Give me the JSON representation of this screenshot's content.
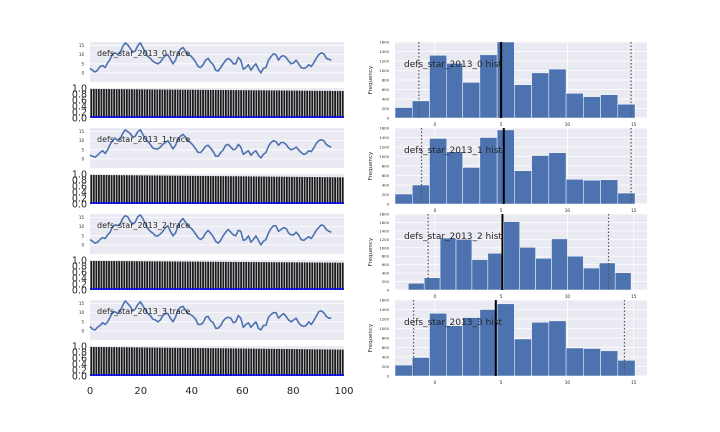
{
  "figure": {
    "colors": {
      "axes_bg": "#EAEAF2",
      "grid": "#FFFFFF",
      "trace_line": "#4C72B0",
      "hist_fill": "#4C72B0",
      "bar_fill": "#1A1A1A",
      "acf_line": "#0000FF",
      "mean_line": "#000000",
      "ci_line": "#555555",
      "text": "#262626"
    },
    "shared_x": {
      "range": [
        0,
        100
      ],
      "ticks": [
        0,
        20,
        40,
        60,
        80,
        100
      ]
    }
  },
  "chart_data": [
    {
      "type": "line",
      "role": "trace",
      "title": "defs_star_2013_0 trace",
      "ylim": [
        -5,
        17
      ],
      "yticks": [
        15,
        10,
        5,
        0
      ],
      "x_range": [
        0,
        100
      ],
      "y_values": [
        2.5,
        1.5,
        0.5,
        1.5,
        3.5,
        4.0,
        3.0,
        5.5,
        7.5,
        10.5,
        11.0,
        10.0,
        11.0,
        14.5,
        16.5,
        15.5,
        13.5,
        11.5,
        12.0,
        15.0,
        16.5,
        14.0,
        11.0,
        9.0,
        8.0,
        6.5,
        5.5,
        5.0,
        6.0,
        8.0,
        9.5,
        10.0,
        7.5,
        5.0,
        7.0,
        11.0,
        13.0,
        14.0,
        12.0,
        10.0,
        9.5,
        8.0,
        6.0,
        3.5,
        3.0,
        4.5,
        7.0,
        8.0,
        6.0,
        4.5,
        1.5,
        1.0,
        3.0,
        5.0,
        7.0,
        8.0,
        7.0,
        5.0,
        5.0,
        8.5,
        7.0,
        2.0,
        3.0,
        4.5,
        1.5,
        3.5,
        5.0,
        2.0,
        0.0,
        2.5,
        3.0,
        7.0,
        9.0,
        10.5,
        10.0,
        7.0,
        9.0,
        9.5,
        8.5,
        6.5,
        5.0,
        5.5,
        7.0,
        5.0,
        3.0,
        2.5,
        3.0,
        4.5,
        3.5,
        5.5,
        8.0,
        10.0,
        11.0,
        10.5,
        8.0,
        7.5,
        7.0
      ]
    },
    {
      "type": "bar",
      "role": "autocorrelation",
      "ylim": [
        0.0,
        1.0
      ],
      "yticks": [
        1.0,
        0.8,
        0.6,
        0.4,
        0.2,
        0.0
      ],
      "x_range": [
        0,
        100
      ],
      "values_start": 0.97,
      "values_end": 0.9,
      "n_bars": 100
    },
    {
      "type": "bar",
      "role": "histogram",
      "title": "defs_star_2013_0 hist",
      "ylabel": "Frequency",
      "yticks": [
        0,
        200,
        400,
        600,
        800,
        1000,
        1200,
        1400,
        1600
      ],
      "xticks": [
        0,
        5,
        10,
        15
      ],
      "xlim": [
        -3,
        16
      ],
      "ylim": [
        0,
        1600
      ],
      "bin_edges": [
        -3.0,
        -1.7,
        -0.4,
        0.9,
        2.1,
        3.4,
        4.7,
        6.0,
        7.3,
        8.6,
        9.9,
        11.2,
        12.5,
        13.8,
        15.1,
        16.4
      ],
      "counts": [
        220,
        360,
        1320,
        1150,
        750,
        1330,
        1600,
        700,
        950,
        1030,
        520,
        450,
        490,
        290,
        0
      ],
      "mean": 5.0,
      "ci": [
        -1.2,
        14.8
      ]
    },
    {
      "type": "line",
      "role": "trace",
      "title": "defs_star_2013_1 trace",
      "ylim": [
        -5,
        17
      ],
      "yticks": [
        15,
        10,
        5,
        0
      ],
      "x_range": [
        0,
        100
      ],
      "y_values": [
        2.0,
        1.5,
        1.0,
        2.0,
        3.5,
        4.5,
        3.0,
        5.0,
        8.0,
        10.0,
        11.5,
        10.0,
        11.0,
        14.0,
        16.0,
        15.0,
        14.0,
        12.0,
        12.5,
        15.0,
        16.0,
        13.5,
        11.0,
        9.5,
        8.0,
        6.0,
        5.5,
        5.5,
        6.5,
        8.0,
        9.0,
        10.0,
        8.0,
        5.5,
        7.5,
        11.0,
        12.5,
        13.5,
        12.0,
        10.0,
        9.0,
        7.5,
        5.5,
        3.5,
        3.5,
        5.0,
        7.0,
        7.5,
        6.0,
        4.0,
        1.5,
        1.5,
        3.5,
        5.0,
        7.5,
        8.0,
        6.5,
        5.0,
        5.5,
        8.0,
        6.5,
        2.5,
        3.5,
        4.5,
        2.0,
        3.5,
        4.5,
        2.0,
        0.5,
        2.5,
        3.5,
        7.0,
        9.0,
        10.0,
        9.5,
        7.5,
        9.0,
        9.0,
        8.0,
        6.0,
        5.0,
        5.5,
        6.5,
        5.0,
        3.5,
        2.5,
        3.0,
        4.5,
        4.0,
        6.0,
        8.5,
        10.0,
        10.5,
        10.0,
        8.0,
        7.0,
        6.5
      ]
    },
    {
      "type": "bar",
      "role": "autocorrelation",
      "ylim": [
        0.0,
        1.0
      ],
      "yticks": [
        1.0,
        0.8,
        0.6,
        0.4,
        0.2,
        0.0
      ],
      "x_range": [
        0,
        100
      ],
      "values_start": 0.97,
      "values_end": 0.89,
      "n_bars": 100
    },
    {
      "type": "bar",
      "role": "histogram",
      "title": "defs_star_2013_1 hist",
      "ylabel": "Frequency",
      "yticks": [
        0,
        200,
        400,
        600,
        800,
        1000,
        1200,
        1400,
        1600
      ],
      "xticks": [
        0,
        5,
        10,
        15
      ],
      "xlim": [
        -3,
        16
      ],
      "ylim": [
        0,
        1600
      ],
      "bin_edges": [
        -3.0,
        -1.7,
        -0.4,
        0.9,
        2.1,
        3.4,
        4.7,
        6.0,
        7.3,
        8.6,
        9.9,
        11.2,
        12.5,
        13.8,
        15.1,
        16.4
      ],
      "counts": [
        210,
        400,
        1380,
        1100,
        770,
        1400,
        1560,
        700,
        1020,
        1080,
        520,
        500,
        510,
        230,
        0
      ],
      "mean": 5.2,
      "ci": [
        -1.0,
        14.8
      ]
    },
    {
      "type": "line",
      "role": "trace",
      "title": "defs_star_2013_2 trace",
      "ylim": [
        -5,
        17
      ],
      "yticks": [
        15,
        10,
        5,
        0
      ],
      "x_range": [
        0,
        100
      ],
      "y_values": [
        3.0,
        2.0,
        1.0,
        1.5,
        3.0,
        4.0,
        3.5,
        5.5,
        7.0,
        10.0,
        11.0,
        10.5,
        11.5,
        14.5,
        16.0,
        15.5,
        13.0,
        11.5,
        12.5,
        15.5,
        16.5,
        14.5,
        11.5,
        9.0,
        7.5,
        6.5,
        5.0,
        5.0,
        6.0,
        7.5,
        9.5,
        10.5,
        7.5,
        5.0,
        6.5,
        10.5,
        13.0,
        14.5,
        12.5,
        10.5,
        9.5,
        8.0,
        6.0,
        4.0,
        3.0,
        4.0,
        6.5,
        8.0,
        6.5,
        4.5,
        2.0,
        1.0,
        2.5,
        5.0,
        7.0,
        8.5,
        7.0,
        5.5,
        5.0,
        8.0,
        7.5,
        2.5,
        3.0,
        5.0,
        1.5,
        3.0,
        5.0,
        2.5,
        0.0,
        2.0,
        3.0,
        6.5,
        9.0,
        10.5,
        10.5,
        7.5,
        8.5,
        9.5,
        9.0,
        6.5,
        5.5,
        5.5,
        7.0,
        5.5,
        3.0,
        2.5,
        3.5,
        4.5,
        3.5,
        5.5,
        8.0,
        9.5,
        11.0,
        10.5,
        8.5,
        7.5,
        7.0
      ]
    },
    {
      "type": "bar",
      "role": "autocorrelation",
      "ylim": [
        0.0,
        1.0
      ],
      "yticks": [
        1.0,
        0.8,
        0.6,
        0.4,
        0.2,
        0.0
      ],
      "x_range": [
        0,
        100
      ],
      "values_start": 0.97,
      "values_end": 0.91,
      "n_bars": 100
    },
    {
      "type": "bar",
      "role": "histogram",
      "title": "defs_star_2013_2 hist",
      "ylabel": "Frequency",
      "yticks": [
        0,
        200,
        400,
        600,
        800,
        1000,
        1200,
        1400,
        1600,
        1800
      ],
      "xticks": [
        0,
        5,
        10,
        15
      ],
      "xlim": [
        -3,
        16
      ],
      "ylim": [
        0,
        1800
      ],
      "bin_edges": [
        -2.0,
        -0.8,
        0.4,
        1.6,
        2.8,
        4.0,
        5.2,
        6.4,
        7.6,
        8.8,
        10.0,
        11.2,
        12.4,
        13.6,
        14.8
      ],
      "counts": [
        160,
        290,
        1230,
        1200,
        720,
        870,
        1620,
        1010,
        750,
        1210,
        800,
        520,
        640,
        410
      ],
      "mean": 5.1,
      "ci": [
        -0.5,
        13.1
      ]
    },
    {
      "type": "line",
      "role": "trace",
      "title": "defs_star_2013_3 trace",
      "ylim": [
        -5,
        17
      ],
      "yticks": [
        15,
        10,
        5,
        0
      ],
      "x_range": [
        0,
        100
      ],
      "y_values": [
        2.5,
        1.0,
        0.5,
        2.0,
        3.0,
        4.5,
        3.5,
        5.0,
        7.5,
        10.5,
        10.5,
        9.5,
        11.0,
        14.0,
        16.5,
        15.0,
        13.5,
        11.0,
        12.0,
        14.5,
        16.0,
        14.0,
        11.5,
        9.5,
        8.5,
        6.5,
        6.0,
        5.0,
        6.0,
        8.5,
        9.5,
        9.5,
        7.0,
        5.0,
        7.5,
        11.5,
        13.0,
        13.5,
        11.5,
        9.5,
        9.0,
        8.0,
        6.5,
        3.5,
        3.5,
        4.5,
        7.5,
        8.0,
        5.5,
        4.5,
        1.5,
        1.5,
        3.0,
        5.5,
        7.0,
        7.5,
        7.0,
        4.5,
        5.0,
        8.5,
        7.0,
        2.0,
        3.5,
        4.5,
        2.0,
        3.5,
        5.0,
        1.5,
        0.5,
        3.0,
        3.0,
        7.5,
        9.0,
        10.0,
        10.0,
        7.0,
        8.5,
        9.5,
        8.0,
        6.0,
        5.0,
        6.0,
        7.0,
        4.5,
        3.0,
        2.5,
        3.0,
        5.0,
        3.5,
        5.5,
        8.0,
        10.5,
        11.0,
        10.0,
        8.0,
        7.0,
        7.0
      ]
    },
    {
      "type": "bar",
      "role": "autocorrelation",
      "ylim": [
        0.0,
        1.0
      ],
      "yticks": [
        1.0,
        0.8,
        0.6,
        0.4,
        0.2,
        0.0
      ],
      "x_range": [
        0,
        100
      ],
      "values_start": 0.97,
      "values_end": 0.88,
      "n_bars": 100
    },
    {
      "type": "bar",
      "role": "histogram",
      "title": "defs_star_2013_3 hist",
      "ylabel": "Frequency",
      "yticks": [
        0,
        200,
        400,
        600,
        800,
        1000,
        1200,
        1400,
        1600
      ],
      "xticks": [
        0,
        5,
        10,
        15
      ],
      "xlim": [
        -3,
        16
      ],
      "ylim": [
        0,
        1600
      ],
      "bin_edges": [
        -3.0,
        -1.7,
        -0.4,
        0.9,
        2.1,
        3.4,
        4.7,
        6.0,
        7.3,
        8.6,
        9.9,
        11.2,
        12.5,
        13.8,
        15.1,
        16.4
      ],
      "counts": [
        230,
        390,
        1320,
        1060,
        1230,
        1400,
        1520,
        780,
        1130,
        1160,
        590,
        580,
        530,
        330,
        0
      ],
      "mean": 4.6,
      "ci": [
        -1.6,
        14.3
      ]
    }
  ]
}
